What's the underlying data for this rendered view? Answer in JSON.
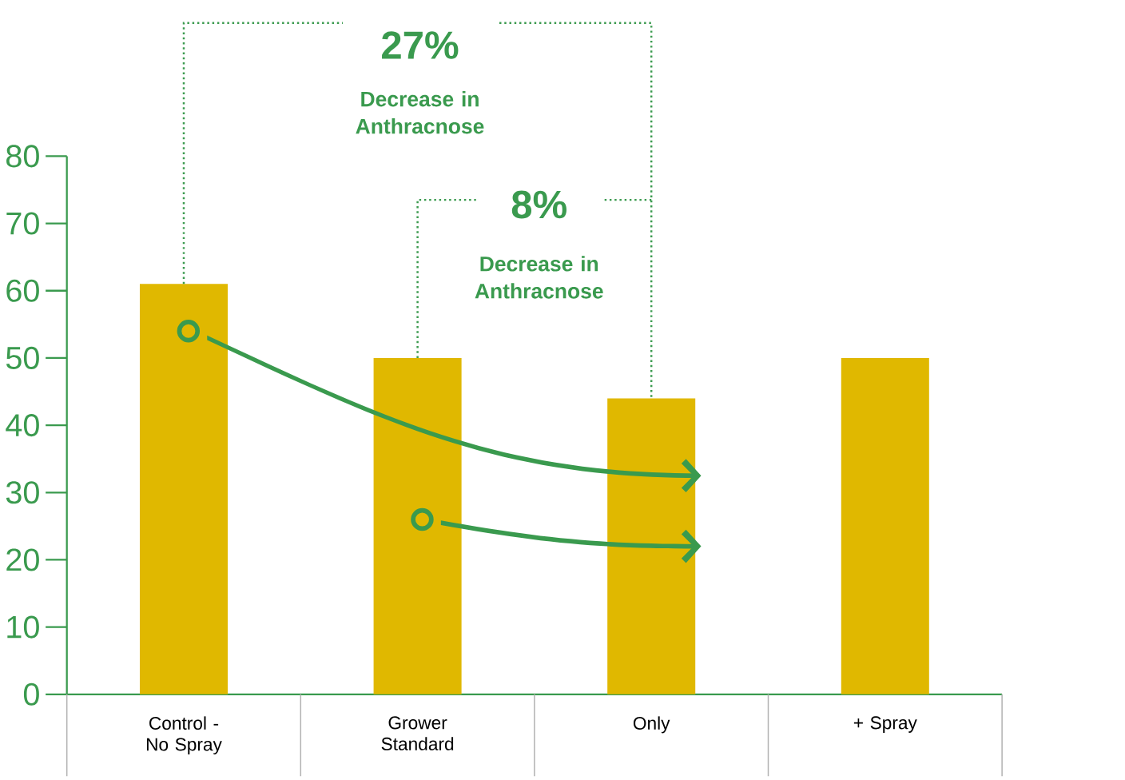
{
  "chart_data": {
    "type": "bar",
    "categories": [
      "Control - No Spray",
      "Grower Standard",
      "Only",
      "+ Spray"
    ],
    "values": [
      61,
      50,
      44,
      50
    ],
    "color": "#e0b800",
    "ylim": [
      0,
      80
    ],
    "yticks": [
      0,
      10,
      20,
      30,
      40,
      50,
      60,
      70,
      80
    ],
    "grid": false,
    "annotations": [
      {
        "text": "27%",
        "x": "Control - No Spray",
        "y": 61
      },
      "Decrease in Anthracnose",
      {
        "text": "8%",
        "x": "Grower Standard",
        "y": 50
      },
      "Decrease in Anthracnose"
    ]
  }
}
